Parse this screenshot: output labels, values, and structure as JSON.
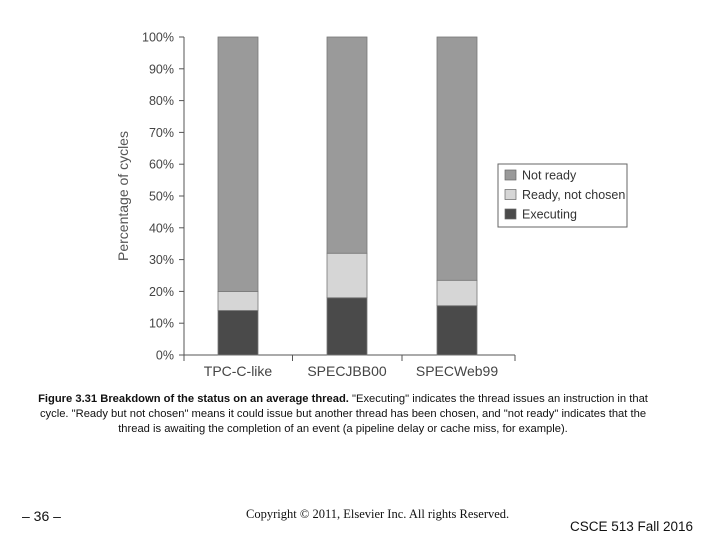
{
  "chart_data": {
    "type": "bar",
    "stacked": true,
    "categories": [
      "TPC-C-like",
      "SPECJBB00",
      "SPECWeb99"
    ],
    "series": [
      {
        "name": "Executing",
        "values": [
          14,
          18,
          15.5
        ],
        "color": "#4a4a4a"
      },
      {
        "name": "Ready, not chosen",
        "values": [
          6,
          14,
          8
        ],
        "color": "#d6d6d6"
      },
      {
        "name": "Not ready",
        "values": [
          80,
          68,
          76.5
        ],
        "color": "#9a9a9a"
      }
    ],
    "legend_order": [
      "Not ready",
      "Ready, not chosen",
      "Executing"
    ],
    "legend_position": "right",
    "ylabel": "Percentage of cycles",
    "xlabel": "",
    "ylim": [
      0,
      100
    ],
    "yticks": [
      "0%",
      "10%",
      "20%",
      "30%",
      "40%",
      "50%",
      "60%",
      "70%",
      "80%",
      "90%",
      "100%"
    ],
    "grid": false
  },
  "caption": {
    "bold": "Figure 3.31 Breakdown of the status on an average thread.",
    "text": " \"Executing\" indicates the thread issues an instruction in that cycle. \"Ready but not chosen\" means it could issue but another thread has been chosen, and \"not ready\" indicates that the thread is awaiting the completion of an event (a pipeline delay or cache miss, for example)."
  },
  "footer": {
    "slide_number": "– 36 –",
    "copyright": "Copyright © 2011, Elsevier Inc. All rights Reserved.",
    "course": "CSCE 513 Fall 2016"
  }
}
